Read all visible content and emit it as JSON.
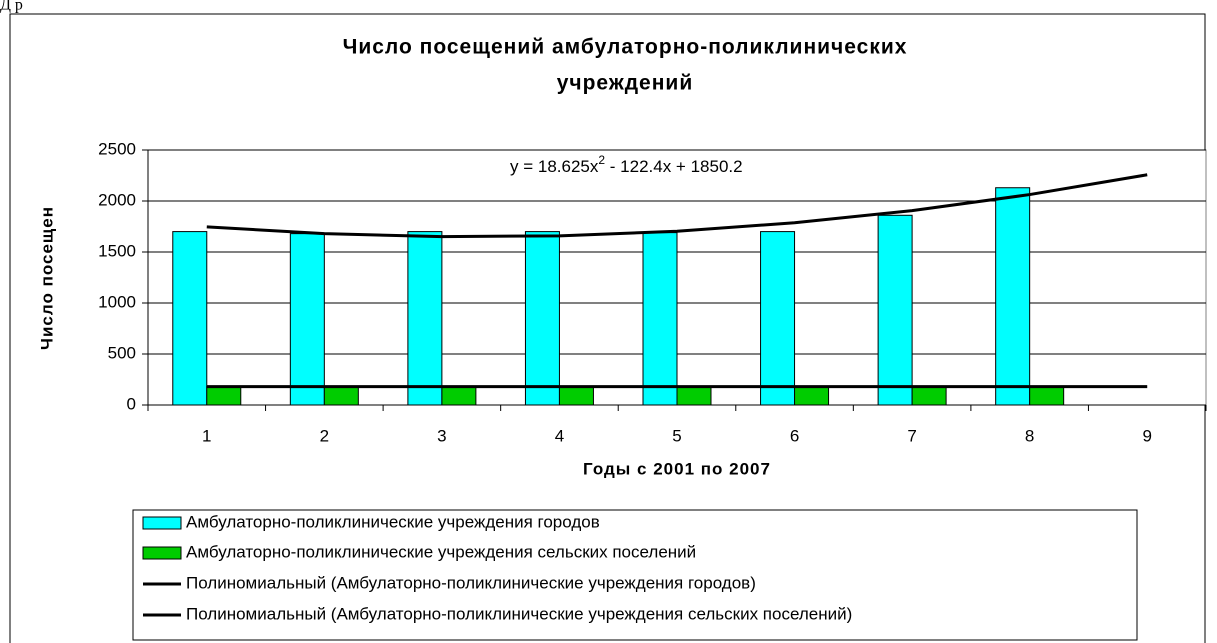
{
  "page_header": "Д р",
  "chart_data": {
    "type": "bar",
    "title": [
      "Число посещений амбулаторно-поликлинических",
      "учреждений"
    ],
    "x_label": "Годы с 2001 по 2007",
    "y_label": "Число посещен",
    "annotation": [
      "y = 18.625x",
      "2",
      " - 122.4x + 1850.2"
    ],
    "categories": [
      "1",
      "2",
      "3",
      "4",
      "5",
      "6",
      "7",
      "8",
      "9"
    ],
    "series": [
      {
        "name": "Амбулаторно-поликлинические учреждения городов",
        "color": "#00ffff",
        "values": [
          1700,
          1680,
          1700,
          1700,
          1690,
          1700,
          1860,
          2130,
          null
        ]
      },
      {
        "name": "Амбулаторно-поликлинические учреждения сельских поселений",
        "color": "#00cc00",
        "values": [
          180,
          180,
          180,
          180,
          180,
          180,
          180,
          180,
          null
        ]
      }
    ],
    "trendlines": [
      {
        "name": "Полиномиальный (Амбулаторно-поликлинические учреждения городов)",
        "color": "#000000",
        "values": [
          1746.4,
          1679.9,
          1650.6,
          1658.6,
          1703.8,
          1786.3,
          1906.0,
          2063.0,
          2257.2
        ]
      },
      {
        "name": "Полиномиальный (Амбулаторно-поликлинические учреждения сельских поселений)",
        "color": "#000000",
        "values": [
          180,
          180,
          180,
          180,
          180,
          180,
          180,
          180,
          180
        ]
      }
    ],
    "ylim": [
      0,
      2500
    ],
    "yticks": [
      0,
      500,
      1000,
      1500,
      2000,
      2500
    ],
    "grid": true
  }
}
